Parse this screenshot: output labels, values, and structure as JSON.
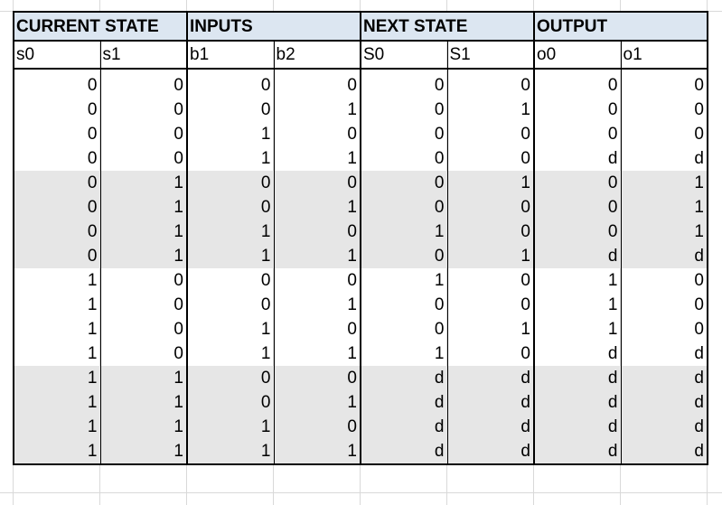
{
  "groups": [
    "CURRENT STATE",
    "INPUTS",
    "NEXT STATE",
    "OUTPUT"
  ],
  "columns": [
    "s0",
    "s1",
    "b1",
    "b2",
    "S0",
    "S1",
    "o0",
    "o1"
  ],
  "rows": [
    [
      "0",
      "0",
      "0",
      "0",
      "0",
      "0",
      "0",
      "0"
    ],
    [
      "0",
      "0",
      "0",
      "1",
      "0",
      "1",
      "0",
      "0"
    ],
    [
      "0",
      "0",
      "1",
      "0",
      "0",
      "0",
      "0",
      "0"
    ],
    [
      "0",
      "0",
      "1",
      "1",
      "0",
      "0",
      "d",
      "d"
    ],
    [
      "0",
      "1",
      "0",
      "0",
      "0",
      "1",
      "0",
      "1"
    ],
    [
      "0",
      "1",
      "0",
      "1",
      "0",
      "0",
      "0",
      "1"
    ],
    [
      "0",
      "1",
      "1",
      "0",
      "1",
      "0",
      "0",
      "1"
    ],
    [
      "0",
      "1",
      "1",
      "1",
      "0",
      "1",
      "d",
      "d"
    ],
    [
      "1",
      "0",
      "0",
      "0",
      "1",
      "0",
      "1",
      "0"
    ],
    [
      "1",
      "0",
      "0",
      "1",
      "0",
      "0",
      "1",
      "0"
    ],
    [
      "1",
      "0",
      "1",
      "0",
      "0",
      "1",
      "1",
      "0"
    ],
    [
      "1",
      "0",
      "1",
      "1",
      "1",
      "0",
      "d",
      "d"
    ],
    [
      "1",
      "1",
      "0",
      "0",
      "d",
      "d",
      "d",
      "d"
    ],
    [
      "1",
      "1",
      "0",
      "1",
      "d",
      "d",
      "d",
      "d"
    ],
    [
      "1",
      "1",
      "1",
      "0",
      "d",
      "d",
      "d",
      "d"
    ],
    [
      "1",
      "1",
      "1",
      "1",
      "d",
      "d",
      "d",
      "d"
    ]
  ],
  "colors": {
    "header_fill": "#dce6f1",
    "row_shade": "#e6e6e6",
    "gridline": "#d9d9d9"
  }
}
